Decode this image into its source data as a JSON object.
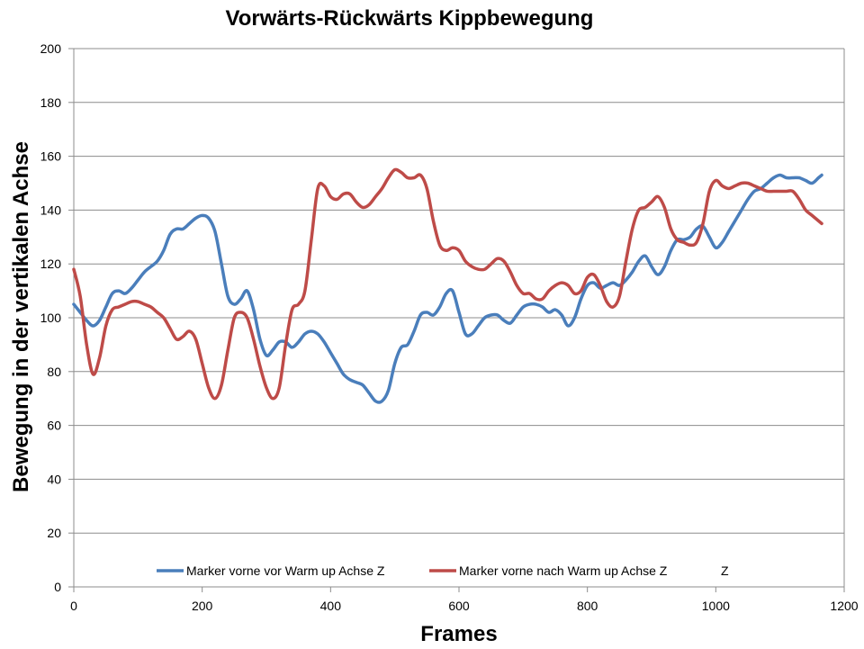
{
  "chart_data": {
    "type": "line",
    "title": "Vorwärts-Rückwärts Kippbewegung",
    "xlabel": "Frames",
    "ylabel": "Bewegung in der vertikalen Achse",
    "xlim": [
      0,
      1200
    ],
    "ylim": [
      0,
      200
    ],
    "x_ticks": [
      0,
      200,
      400,
      600,
      800,
      1000,
      1200
    ],
    "y_ticks": [
      0,
      20,
      40,
      60,
      80,
      100,
      120,
      140,
      160,
      180,
      200
    ],
    "grid": "horizontal",
    "legend_position": "bottom-inside",
    "legend_extra_text": "Z",
    "series": [
      {
        "name": "Marker vorne vor Warm up Achse Z",
        "color": "#4a7ebb",
        "x": [
          0,
          10,
          20,
          30,
          40,
          50,
          60,
          70,
          80,
          90,
          100,
          110,
          120,
          130,
          140,
          150,
          160,
          170,
          180,
          190,
          200,
          210,
          220,
          230,
          240,
          250,
          260,
          270,
          280,
          290,
          300,
          310,
          320,
          330,
          340,
          350,
          360,
          370,
          380,
          390,
          400,
          410,
          420,
          430,
          440,
          450,
          460,
          470,
          480,
          490,
          500,
          510,
          520,
          530,
          540,
          550,
          560,
          570,
          580,
          590,
          600,
          610,
          620,
          630,
          640,
          650,
          660,
          670,
          680,
          690,
          700,
          710,
          720,
          730,
          740,
          750,
          760,
          770,
          780,
          790,
          800,
          810,
          820,
          830,
          840,
          850,
          860,
          870,
          880,
          890,
          900,
          910,
          920,
          930,
          940,
          950,
          960,
          970,
          980,
          990,
          1000,
          1010,
          1020,
          1030,
          1040,
          1050,
          1060,
          1070,
          1080,
          1090,
          1100,
          1110,
          1120,
          1130,
          1140,
          1150,
          1160,
          1165
        ],
        "y": [
          105,
          102,
          99,
          97,
          99,
          104,
          109,
          110,
          109,
          111,
          114,
          117,
          119,
          121,
          125,
          131,
          133,
          133,
          135,
          137,
          138,
          137,
          132,
          120,
          108,
          105,
          107,
          110,
          103,
          92,
          86,
          88,
          91,
          91,
          89,
          91,
          94,
          95,
          94,
          91,
          87,
          83,
          79,
          77,
          76,
          75,
          72,
          69,
          69,
          73,
          83,
          89,
          90,
          95,
          101,
          102,
          101,
          104,
          109,
          110,
          102,
          94,
          94,
          97,
          100,
          101,
          101,
          99,
          98,
          101,
          104,
          105,
          105,
          104,
          102,
          103,
          101,
          97,
          100,
          107,
          112,
          113,
          111,
          112,
          113,
          112,
          114,
          117,
          121,
          123,
          119,
          116,
          119,
          125,
          129,
          129,
          130,
          133,
          134,
          130,
          126,
          128,
          132,
          136,
          140,
          144,
          147,
          148,
          150,
          152,
          153,
          152,
          152,
          152,
          151,
          150,
          152,
          153
        ]
      },
      {
        "name": "Marker vorne nach Warm up Achse Z",
        "color": "#be4b48",
        "x": [
          0,
          10,
          20,
          30,
          40,
          50,
          60,
          70,
          80,
          90,
          100,
          110,
          120,
          130,
          140,
          150,
          160,
          170,
          180,
          190,
          200,
          210,
          220,
          230,
          240,
          250,
          260,
          270,
          280,
          290,
          300,
          310,
          320,
          330,
          340,
          350,
          360,
          370,
          380,
          390,
          400,
          410,
          420,
          430,
          440,
          450,
          460,
          470,
          480,
          490,
          500,
          510,
          520,
          530,
          540,
          550,
          560,
          570,
          580,
          590,
          600,
          610,
          620,
          630,
          640,
          650,
          660,
          670,
          680,
          690,
          700,
          710,
          720,
          730,
          740,
          750,
          760,
          770,
          780,
          790,
          800,
          810,
          820,
          830,
          840,
          850,
          860,
          870,
          880,
          890,
          900,
          910,
          920,
          930,
          940,
          950,
          960,
          970,
          980,
          990,
          1000,
          1010,
          1020,
          1030,
          1040,
          1050,
          1060,
          1070,
          1080,
          1090,
          1100,
          1110,
          1120,
          1130,
          1140,
          1150,
          1160,
          1165
        ],
        "y": [
          118,
          108,
          90,
          79,
          85,
          97,
          103,
          104,
          105,
          106,
          106,
          105,
          104,
          102,
          100,
          96,
          92,
          93,
          95,
          92,
          83,
          74,
          70,
          75,
          88,
          100,
          102,
          100,
          92,
          82,
          74,
          70,
          74,
          90,
          103,
          105,
          110,
          129,
          148,
          149,
          145,
          144,
          146,
          146,
          143,
          141,
          142,
          145,
          148,
          152,
          155,
          154,
          152,
          152,
          153,
          148,
          136,
          127,
          125,
          126,
          125,
          121,
          119,
          118,
          118,
          120,
          122,
          121,
          117,
          112,
          109,
          109,
          107,
          107,
          110,
          112,
          113,
          112,
          109,
          110,
          115,
          116,
          112,
          106,
          104,
          108,
          121,
          133,
          140,
          141,
          143,
          145,
          141,
          133,
          129,
          128,
          127,
          128,
          135,
          147,
          151,
          149,
          148,
          149,
          150,
          150,
          149,
          148,
          147,
          147,
          147,
          147,
          147,
          144,
          140,
          138,
          136,
          135
        ]
      }
    ]
  }
}
